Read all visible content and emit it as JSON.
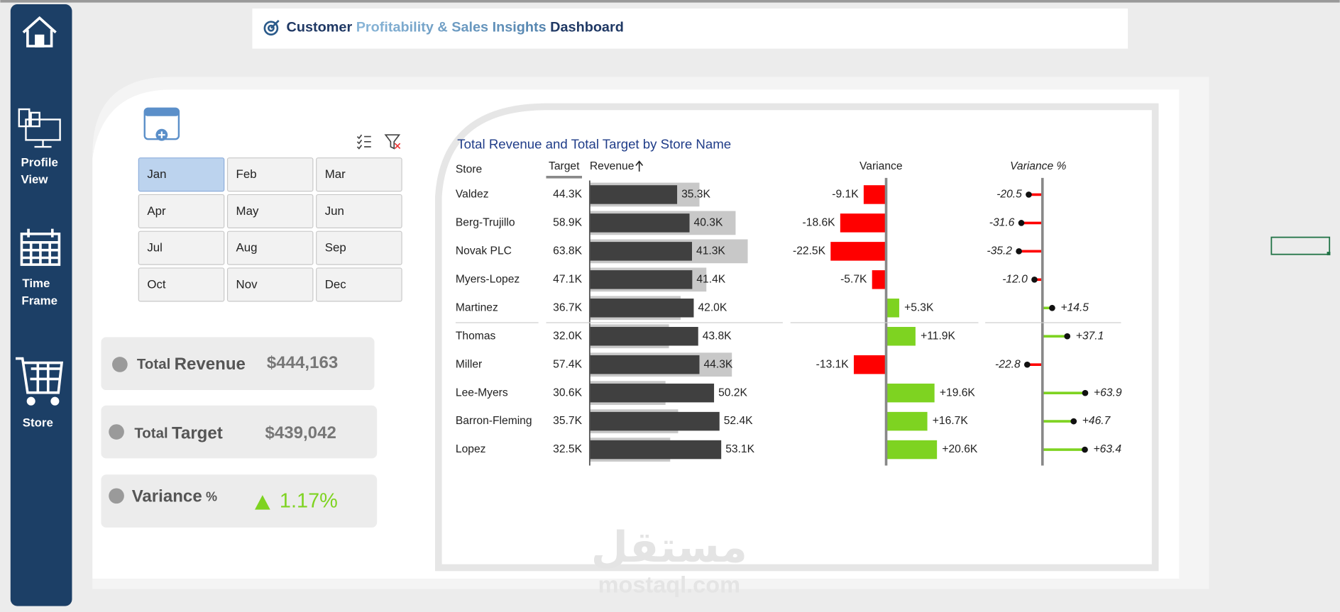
{
  "header": {
    "title_parts": [
      "Customer",
      "Profitability & Sales Insights",
      "Dashboard"
    ]
  },
  "nav": {
    "items": [
      {
        "lines": [
          "Profile",
          "View"
        ]
      },
      {
        "lines": [
          "Time",
          "Frame"
        ]
      },
      {
        "lines": [
          "Store"
        ]
      }
    ]
  },
  "slicer": {
    "months": [
      "Jan",
      "Feb",
      "Mar",
      "Apr",
      "May",
      "Jun",
      "Jul",
      "Aug",
      "Sep",
      "Oct",
      "Nov",
      "Dec"
    ],
    "selected": "Jan"
  },
  "kpis": [
    {
      "prefix": "Total",
      "label": "Revenue",
      "value": "$444,163"
    },
    {
      "prefix": "Total",
      "label": "Target",
      "value": "$439,042"
    },
    {
      "label": "Variance",
      "suffix": "%",
      "value": "1.17%"
    }
  ],
  "chart": {
    "title": "Total Revenue and Total Target by Store Name",
    "columns": {
      "store": "Store",
      "target": "Target",
      "revenue": "Revenue",
      "variance": "Variance",
      "variance_pct": "Variance %"
    },
    "stores": [
      "Valdez",
      "Berg-Trujillo",
      "Novak PLC",
      "Myers-Lopez",
      "Martinez",
      "Thomas",
      "Miller",
      "Lee-Myers",
      "Barron-Fleming",
      "Lopez"
    ],
    "target": [
      44300,
      58900,
      63800,
      47100,
      36700,
      32000,
      57400,
      30600,
      35700,
      32500
    ],
    "target_labels": [
      "44.3K",
      "58.9K",
      "63.8K",
      "47.1K",
      "36.7K",
      "32.0K",
      "57.4K",
      "30.6K",
      "35.7K",
      "32.5K"
    ],
    "revenue": [
      35300,
      40300,
      41300,
      41400,
      42000,
      43800,
      44300,
      50200,
      52400,
      53100
    ],
    "revenue_labels": [
      "35.3K",
      "40.3K",
      "41.3K",
      "41.4K",
      "42.0K",
      "43.8K",
      "44.3K",
      "50.2K",
      "52.4K",
      "53.1K"
    ],
    "variance": [
      -9100,
      -18600,
      -22500,
      -5700,
      5300,
      11900,
      -13100,
      19600,
      16700,
      20600
    ],
    "variance_labels": [
      "-9.1K",
      "-18.6K",
      "-22.5K",
      "-5.7K",
      "+5.3K",
      "+11.9K",
      "-13.1K",
      "+19.6K",
      "+16.7K",
      "+20.6K"
    ],
    "variance_pct": [
      -20.5,
      -31.6,
      -35.2,
      -12.0,
      14.5,
      37.1,
      -22.8,
      63.9,
      46.7,
      63.4
    ],
    "variance_pct_labels": [
      "-20.5",
      "-31.6",
      "-35.2",
      "-12.0",
      "+14.5",
      "+37.1",
      "-22.8",
      "+63.9",
      "+46.7",
      "+63.4"
    ],
    "colors": {
      "revenue": "#404040",
      "target": "#c8c8c8",
      "positive": "#7ed321",
      "negative": "#ff0000"
    }
  },
  "watermark": {
    "arabic": "مستقل",
    "latin": "mostaql.com"
  }
}
